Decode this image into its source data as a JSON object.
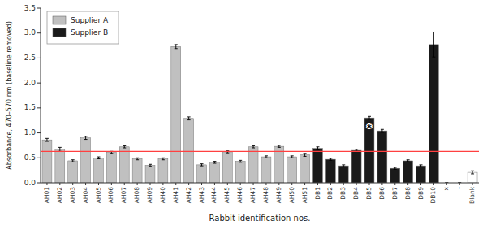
{
  "chart_data": {
    "type": "bar",
    "categories": [
      "AH01",
      "AH02",
      "AH03",
      "AH04",
      "AH05",
      "AH06",
      "AH07",
      "AH08",
      "AH09",
      "AH40",
      "AH41",
      "AH42",
      "AH43",
      "AH44",
      "AH45",
      "AH46",
      "AH47",
      "AH48",
      "AH49",
      "AH50",
      "AH51",
      "DB1",
      "DB2",
      "DB3",
      "DB4",
      "DB5",
      "DB6",
      "DB7",
      "DB8",
      "DB9",
      "DB10",
      "x",
      "-",
      "Blank"
    ],
    "values": [
      0.86,
      0.67,
      0.44,
      0.9,
      0.5,
      0.61,
      0.72,
      0.48,
      0.35,
      0.48,
      2.73,
      1.29,
      0.36,
      0.41,
      0.62,
      0.43,
      0.72,
      0.52,
      0.73,
      0.52,
      0.56,
      0.69,
      0.47,
      0.34,
      0.65,
      1.3,
      1.04,
      0.29,
      0.44,
      0.34,
      2.77,
      0.0,
      0.0,
      0.21
    ],
    "errors": [
      0.03,
      0.04,
      0.02,
      0.03,
      0.02,
      0.02,
      0.02,
      0.02,
      0.02,
      0.02,
      0.04,
      0.03,
      0.02,
      0.02,
      0.02,
      0.02,
      0.02,
      0.02,
      0.02,
      0.02,
      0.03,
      0.03,
      0.02,
      0.02,
      0.02,
      0.03,
      0.03,
      0.02,
      0.02,
      0.02,
      0.25,
      0.0,
      0.0,
      0.03
    ],
    "colors": [
      "#c0c0c0",
      "#c0c0c0",
      "#c0c0c0",
      "#c0c0c0",
      "#c0c0c0",
      "#c0c0c0",
      "#c0c0c0",
      "#c0c0c0",
      "#c0c0c0",
      "#c0c0c0",
      "#c0c0c0",
      "#c0c0c0",
      "#c0c0c0",
      "#c0c0c0",
      "#c0c0c0",
      "#c0c0c0",
      "#c0c0c0",
      "#c0c0c0",
      "#c0c0c0",
      "#c0c0c0",
      "#c0c0c0",
      "#1a1a1a",
      "#1a1a1a",
      "#1a1a1a",
      "#1a1a1a",
      "#1a1a1a",
      "#1a1a1a",
      "#1a1a1a",
      "#1a1a1a",
      "#1a1a1a",
      "#1a1a1a",
      "#ffffff",
      "#ffffff",
      "#ffffff"
    ],
    "xlabel": "Rabbit identification nos.",
    "ylabel": "Absorbance, 470–570 nm (baseline removed)",
    "ylim": [
      0,
      3.5
    ],
    "yticks": [
      {
        "value": 0.0,
        "label": "0.0"
      },
      0.5,
      {
        "value": 1.0,
        "label": "1.0"
      },
      1.5,
      {
        "value": 2.0,
        "label": "2.0"
      },
      2.5,
      {
        "value": 3.0,
        "label": "3.0"
      },
      3.5
    ],
    "grid": false,
    "reference_line": {
      "value": 0.63,
      "color": "#ff4040"
    },
    "annotations": [
      {
        "text": "*",
        "x": "DB5",
        "y": 1.05
      }
    ],
    "legend": "upper left",
    "legend_entries": [
      {
        "name": "Supplier A",
        "color": "#c0c0c0"
      },
      {
        "name": "Supplier B",
        "color": "#1a1a1a"
      }
    ]
  }
}
